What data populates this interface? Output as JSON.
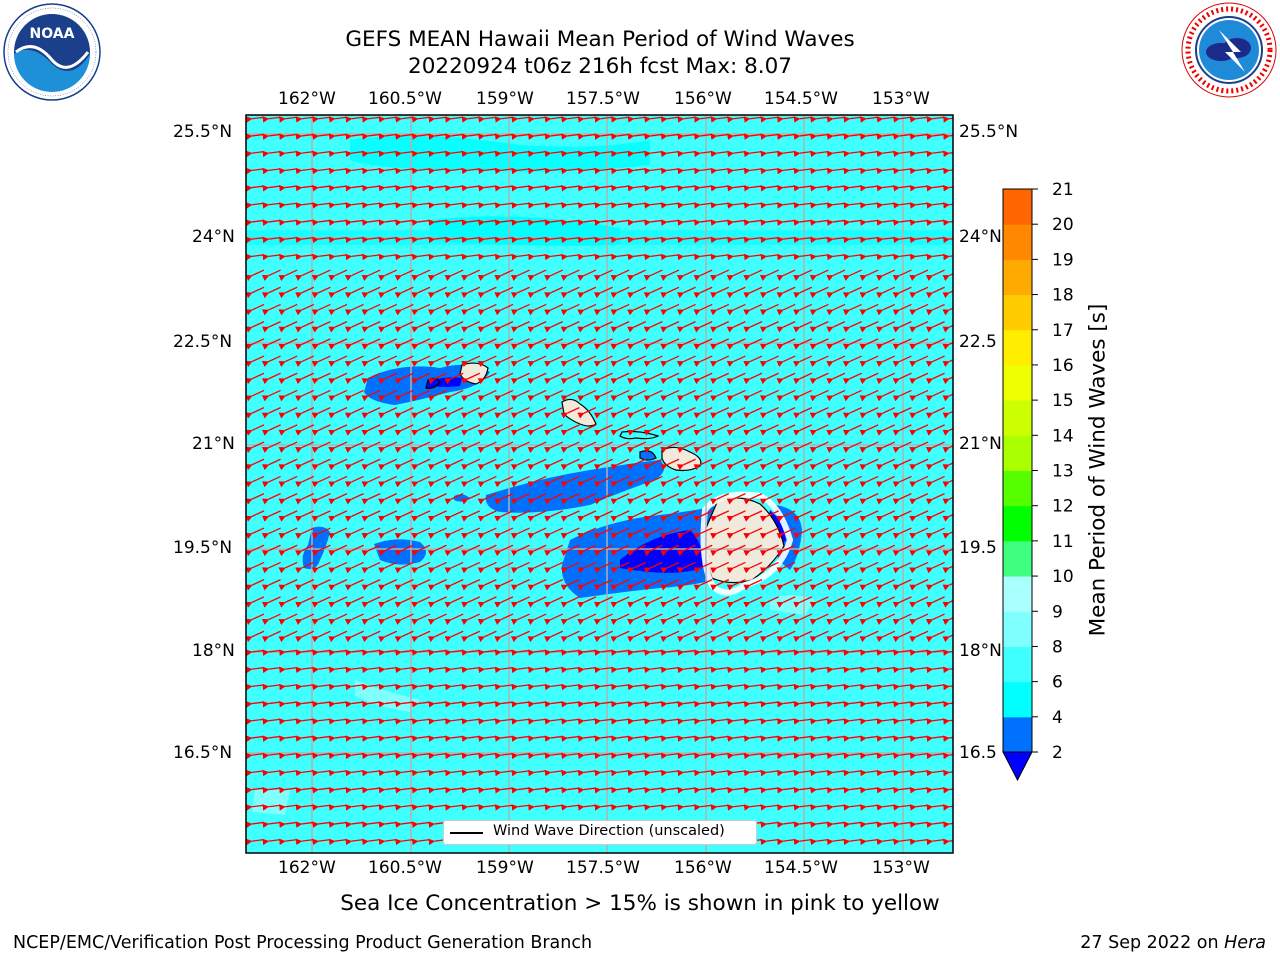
{
  "title": {
    "line1": "GEFS MEAN Hawaii Mean Period of Wind Waves",
    "line2": "20220924 t06z 216h fcst   Max: 8.07"
  },
  "logos": {
    "left": {
      "name": "NOAA",
      "ring_text": "NATIONAL OCEANIC AND ATMOSPHERIC ADMINISTRATION",
      "bottom_text": "U.S. DEPARTMENT OF COMMERCE"
    },
    "right": {
      "ring_text": "NATIONAL WEATHER SERVICE"
    }
  },
  "map": {
    "region": "Hawaii",
    "lon_ticks": [
      "162°W",
      "160.5°W",
      "159°W",
      "157.5°W",
      "156°W",
      "154.5°W",
      "153°W"
    ],
    "lat_ticks": [
      "25.5°N",
      "24°N",
      "22.5°N",
      "21°N",
      "19.5°N",
      "18°N",
      "16.5°N"
    ],
    "right_lat_ticks": [
      "25.5°N",
      "24°N",
      "22.5",
      "21°N",
      "19.5",
      "18°N",
      "16.5"
    ],
    "dominant_period_range_s": [
      4,
      6
    ],
    "dominant_wave_direction": "from the east-northeast (easterly trades)",
    "ocean_color": "#00ffff",
    "land_color": "#efeadb",
    "arrow_color": "#ff0000"
  },
  "legend": {
    "label": "Wind Wave Direction (unscaled)"
  },
  "colorbar": {
    "label": "Mean Period of Wind Waves [s]",
    "ticks": [
      "2",
      "4",
      "6",
      "8",
      "9",
      "10",
      "11",
      "12",
      "13",
      "14",
      "15",
      "16",
      "17",
      "18",
      "19",
      "20",
      "21"
    ],
    "colors": [
      "#0070ff",
      "#00ffff",
      "#40ffff",
      "#80ffff",
      "#aaffff",
      "#3fff80",
      "#00ff00",
      "#55ff00",
      "#aaff00",
      "#ccff00",
      "#eeff00",
      "#ffee00",
      "#ffcc00",
      "#ffaa00",
      "#ff8800",
      "#ff6600",
      "#ff3300",
      "#ff0000"
    ],
    "extend_color": "#0000ff"
  },
  "subtitle": "Sea Ice Concentration > 15% is shown in pink to yellow",
  "footer": {
    "left": "NCEP/EMC/Verification Post Processing Product Generation Branch",
    "right_date": "27 Sep 2022 on ",
    "right_host": "Hera"
  }
}
